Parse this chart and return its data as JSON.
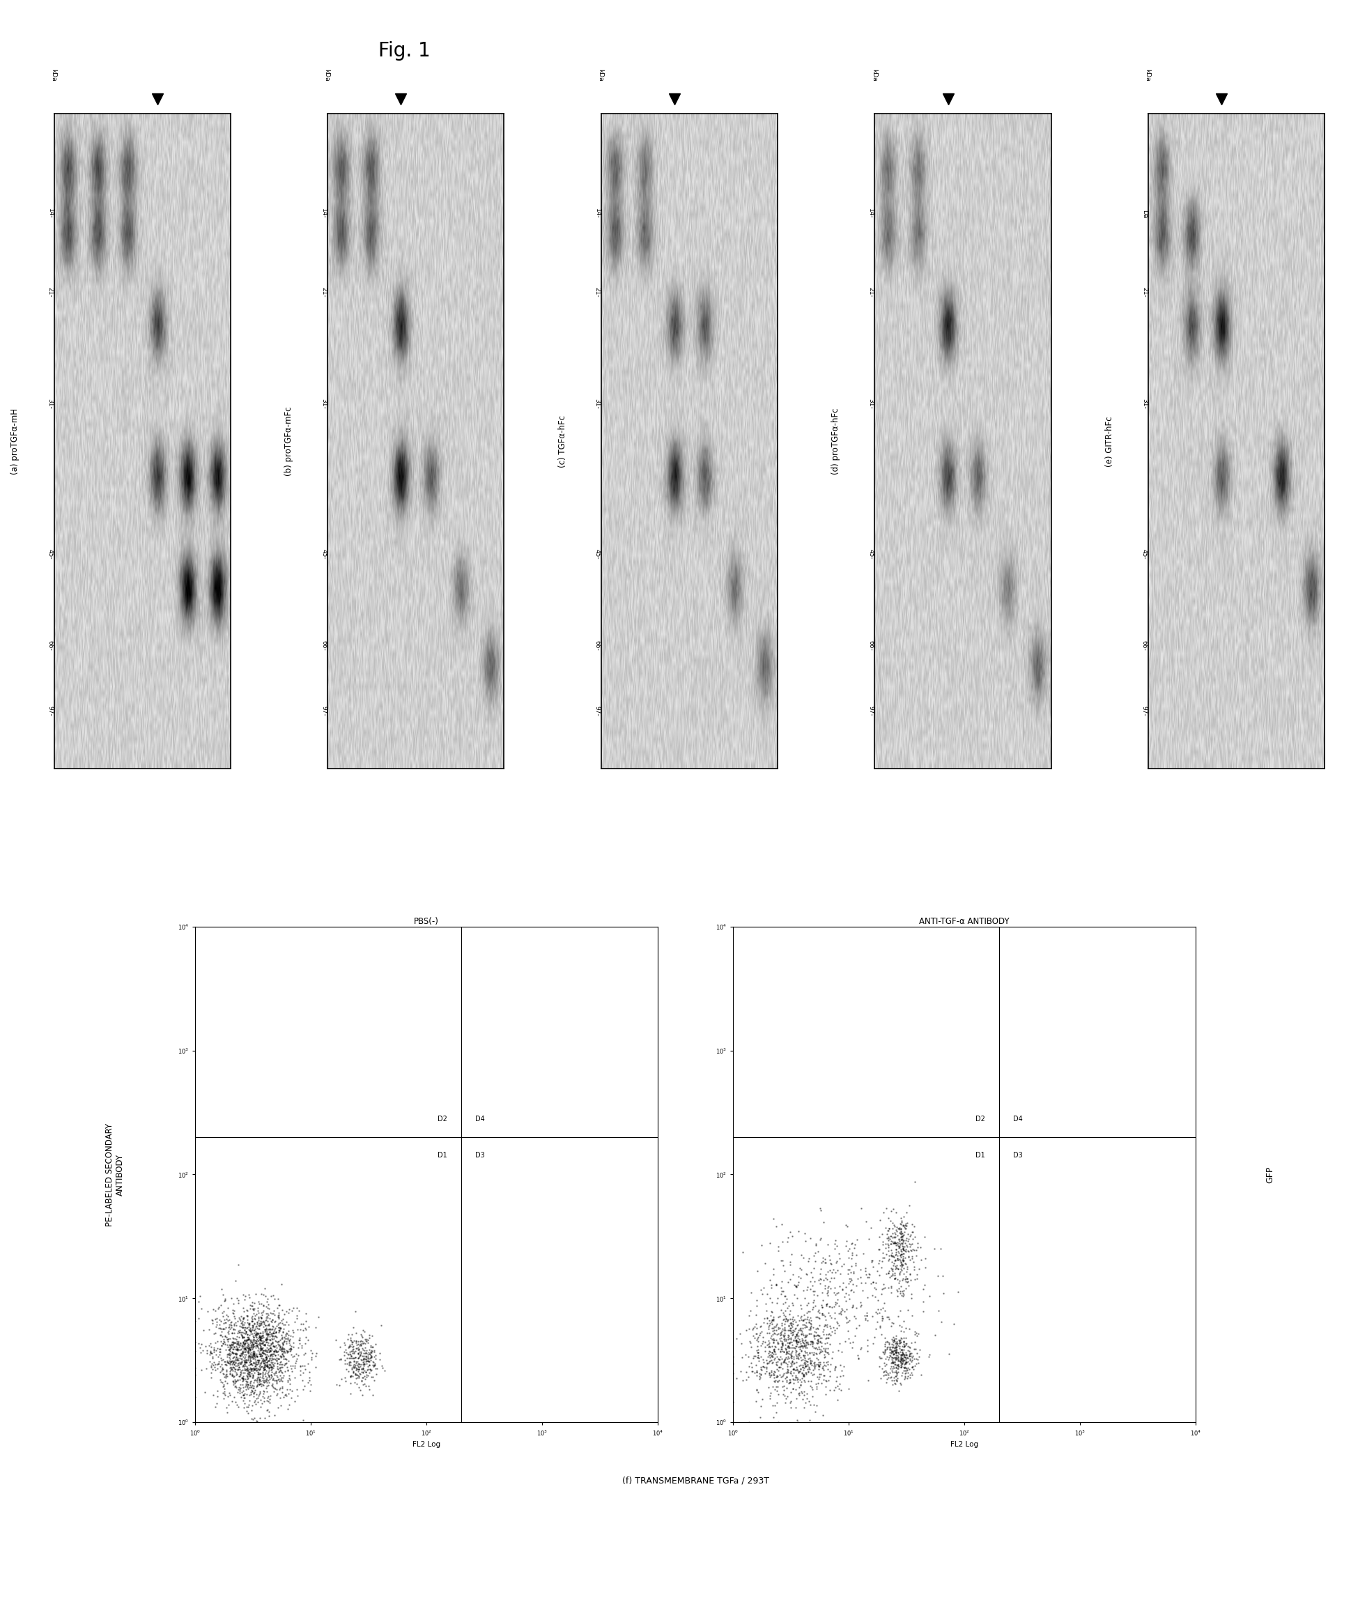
{
  "fig_title": "Fig. 1",
  "background_color": "#ffffff",
  "panel_labels": [
    "(a) proTGFα-mH",
    "(b) proTGFα-mFc",
    "(c) TGFα-hFc",
    "(d) proTGFα-hFc",
    "(e) GITR-hFc"
  ],
  "kda_ticks": [
    "97-",
    "66-",
    "45-",
    "31-",
    "21-",
    "14-"
  ],
  "kda_ticks_e": [
    "97-",
    "66-",
    "45-",
    "31-",
    "21-",
    "Da"
  ],
  "kda_unit": "kDa",
  "arrow_lane_idx": [
    3,
    2,
    2,
    2,
    2
  ],
  "panel_f_label": "(f) TRANSMEMBRANE TGFa / 293T",
  "pbs_label": "PBS(-)",
  "anti_label": "ANTI-TGF-α ANTIBODY",
  "pe_label": "PE-LABELED SECONDARY\nANTIBODY",
  "gfp_label": "GFP",
  "fl2_label": "FL2 Log",
  "quadrant_labels": [
    "D2",
    "D4",
    "D1",
    "D3"
  ]
}
